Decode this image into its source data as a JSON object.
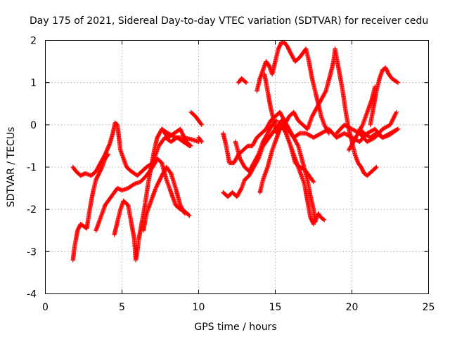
{
  "chart_data": {
    "type": "scatter",
    "title": "Day 175 of 2021, Sidereal Day-to-day VTEC variation (SDTVAR) for receiver cedu",
    "xlabel": "GPS time / hours",
    "ylabel": "SDTVAR / TECUs",
    "xlim": [
      0,
      25
    ],
    "ylim": [
      -4,
      2
    ],
    "x_ticks": [
      0,
      5,
      10,
      15,
      20,
      25
    ],
    "y_ticks": [
      -4,
      -3,
      -2,
      -1,
      0,
      1,
      2
    ],
    "grid": true,
    "marker": "+",
    "color": "#ff0000",
    "tracks": [
      [
        [
          1.8,
          -1.0
        ],
        [
          2.0,
          -1.1
        ],
        [
          2.3,
          -1.2
        ],
        [
          2.6,
          -1.15
        ],
        [
          3.0,
          -1.2
        ],
        [
          3.3,
          -1.1
        ],
        [
          3.6,
          -0.9
        ],
        [
          3.9,
          -0.7
        ],
        [
          4.2,
          -0.45
        ],
        [
          4.4,
          -0.2
        ],
        [
          4.55,
          0.05
        ],
        [
          4.7,
          0.0
        ],
        [
          4.8,
          -0.3
        ],
        [
          4.9,
          -0.6
        ],
        [
          5.1,
          -0.8
        ],
        [
          5.3,
          -1.0
        ],
        [
          5.6,
          -1.1
        ],
        [
          6.0,
          -1.2
        ],
        [
          6.3,
          -1.1
        ],
        [
          6.6,
          -1.0
        ],
        [
          7.0,
          -0.9
        ],
        [
          7.4,
          -0.5
        ],
        [
          7.8,
          -0.3
        ],
        [
          8.2,
          -0.4
        ],
        [
          8.6,
          -0.3
        ],
        [
          9.0,
          -0.4
        ],
        [
          9.4,
          -0.5
        ]
      ],
      [
        [
          1.8,
          -3.2
        ],
        [
          1.9,
          -2.9
        ],
        [
          2.0,
          -2.7
        ],
        [
          2.1,
          -2.5
        ],
        [
          2.3,
          -2.35
        ],
        [
          2.5,
          -2.4
        ],
        [
          2.7,
          -2.45
        ],
        [
          2.9,
          -2.0
        ],
        [
          3.1,
          -1.6
        ],
        [
          3.3,
          -1.3
        ],
        [
          3.5,
          -1.15
        ],
        [
          3.7,
          -1.0
        ],
        [
          3.9,
          -0.8
        ],
        [
          4.1,
          -0.7
        ]
      ],
      [
        [
          3.3,
          -2.5
        ],
        [
          3.6,
          -2.2
        ],
        [
          3.9,
          -1.9
        ],
        [
          4.3,
          -1.7
        ],
        [
          4.7,
          -1.5
        ],
        [
          5.0,
          -1.55
        ],
        [
          5.4,
          -1.5
        ],
        [
          5.8,
          -1.4
        ],
        [
          6.2,
          -1.35
        ],
        [
          6.6,
          -1.2
        ],
        [
          7.0,
          -1.0
        ],
        [
          7.3,
          -0.8
        ],
        [
          7.6,
          -0.9
        ],
        [
          7.9,
          -1.3
        ],
        [
          8.2,
          -1.6
        ],
        [
          8.5,
          -1.9
        ],
        [
          8.8,
          -2.0
        ],
        [
          9.1,
          -2.05
        ],
        [
          9.4,
          -2.15
        ]
      ],
      [
        [
          4.5,
          -2.6
        ],
        [
          4.7,
          -2.3
        ],
        [
          4.9,
          -2.0
        ],
        [
          5.1,
          -1.8
        ],
        [
          5.4,
          -1.9
        ],
        [
          5.6,
          -2.3
        ],
        [
          5.8,
          -2.7
        ],
        [
          5.9,
          -3.2
        ],
        [
          6.0,
          -3.0
        ],
        [
          6.1,
          -2.7
        ],
        [
          6.3,
          -2.3
        ],
        [
          6.5,
          -1.9
        ],
        [
          6.7,
          -1.4
        ],
        [
          6.9,
          -1.0
        ],
        [
          7.1,
          -0.6
        ],
        [
          7.3,
          -0.3
        ],
        [
          7.6,
          -0.1
        ],
        [
          8.0,
          -0.2
        ],
        [
          8.5,
          -0.3
        ],
        [
          9.0,
          -0.3
        ],
        [
          9.6,
          -0.35
        ],
        [
          10.0,
          -0.4
        ]
      ],
      [
        [
          6.4,
          -2.5
        ],
        [
          6.6,
          -2.1
        ],
        [
          6.9,
          -1.8
        ],
        [
          7.2,
          -1.5
        ],
        [
          7.6,
          -1.2
        ],
        [
          7.9,
          -1.0
        ],
        [
          8.2,
          -1.15
        ],
        [
          8.5,
          -1.5
        ],
        [
          8.8,
          -1.9
        ],
        [
          9.1,
          -2.1
        ]
      ],
      [
        [
          7.6,
          -0.1
        ],
        [
          8.0,
          -0.3
        ],
        [
          8.4,
          -0.2
        ],
        [
          8.8,
          -0.1
        ],
        [
          9.2,
          -0.4
        ],
        [
          9.5,
          -0.5
        ]
      ],
      [
        [
          9.5,
          0.3
        ],
        [
          9.8,
          0.2
        ],
        [
          10.0,
          0.1
        ],
        [
          10.2,
          0.0
        ]
      ],
      [
        [
          10.0,
          -0.3
        ],
        [
          10.2,
          -0.4
        ]
      ],
      [
        [
          11.6,
          -1.6
        ],
        [
          11.9,
          -1.7
        ],
        [
          12.2,
          -1.6
        ],
        [
          12.5,
          -1.7
        ],
        [
          12.8,
          -1.5
        ],
        [
          13.0,
          -1.3
        ],
        [
          13.3,
          -1.2
        ],
        [
          13.6,
          -1.0
        ],
        [
          13.9,
          -0.8
        ],
        [
          14.2,
          -0.5
        ],
        [
          14.6,
          -0.3
        ],
        [
          15.0,
          -0.1
        ],
        [
          15.4,
          0.1
        ],
        [
          15.8,
          -0.1
        ],
        [
          16.2,
          -0.3
        ],
        [
          16.6,
          -0.2
        ],
        [
          17.0,
          -0.2
        ],
        [
          17.5,
          -0.3
        ],
        [
          18.0,
          -0.2
        ],
        [
          18.5,
          -0.1
        ],
        [
          19.0,
          -0.3
        ],
        [
          19.5,
          -0.2
        ],
        [
          20.0,
          -0.3
        ],
        [
          20.5,
          -0.4
        ],
        [
          21.0,
          -0.2
        ],
        [
          21.5,
          -0.1
        ],
        [
          22.0,
          -0.3
        ],
        [
          22.5,
          -0.2
        ],
        [
          23.0,
          -0.1
        ]
      ],
      [
        [
          11.6,
          -0.2
        ],
        [
          11.8,
          -0.5
        ],
        [
          12.0,
          -0.9
        ],
        [
          12.3,
          -0.9
        ],
        [
          12.6,
          -0.7
        ],
        [
          12.9,
          -0.6
        ],
        [
          13.2,
          -0.5
        ],
        [
          13.5,
          -0.5
        ],
        [
          13.8,
          -0.3
        ],
        [
          14.1,
          -0.2
        ],
        [
          14.4,
          -0.1
        ],
        [
          14.7,
          0.1
        ],
        [
          15.0,
          0.2
        ],
        [
          15.3,
          0.3
        ],
        [
          15.6,
          0.1
        ],
        [
          15.9,
          -0.1
        ],
        [
          16.2,
          -0.3
        ],
        [
          16.5,
          -0.5
        ],
        [
          16.8,
          -0.9
        ],
        [
          17.1,
          -1.3
        ],
        [
          17.3,
          -1.7
        ],
        [
          17.5,
          -2.0
        ],
        [
          17.6,
          -2.3
        ],
        [
          17.8,
          -2.1
        ],
        [
          18.0,
          -2.2
        ],
        [
          18.2,
          -2.25
        ]
      ],
      [
        [
          14.0,
          -1.6
        ],
        [
          14.2,
          -1.3
        ],
        [
          14.5,
          -1.0
        ],
        [
          14.8,
          -0.6
        ],
        [
          15.1,
          -0.3
        ],
        [
          15.4,
          0.0
        ],
        [
          15.7,
          -0.2
        ],
        [
          16.0,
          -0.5
        ],
        [
          16.3,
          -0.8
        ],
        [
          16.6,
          -1.1
        ],
        [
          16.9,
          -1.4
        ],
        [
          17.1,
          -1.8
        ],
        [
          17.3,
          -2.2
        ],
        [
          17.5,
          -2.35
        ]
      ],
      [
        [
          13.8,
          0.8
        ],
        [
          14.0,
          1.1
        ],
        [
          14.2,
          1.3
        ],
        [
          14.4,
          1.5
        ],
        [
          14.6,
          1.4
        ],
        [
          14.8,
          1.2
        ],
        [
          15.0,
          1.5
        ],
        [
          15.2,
          1.8
        ],
        [
          15.4,
          1.95
        ],
        [
          15.6,
          1.95
        ],
        [
          15.8,
          1.85
        ],
        [
          16.0,
          1.7
        ],
        [
          16.3,
          1.5
        ],
        [
          16.6,
          1.6
        ],
        [
          17.0,
          1.8
        ],
        [
          17.2,
          1.5
        ],
        [
          17.4,
          1.1
        ],
        [
          17.6,
          0.8
        ],
        [
          17.8,
          0.5
        ],
        [
          18.0,
          0.2
        ],
        [
          18.2,
          0.0
        ],
        [
          18.5,
          -0.2
        ]
      ],
      [
        [
          14.3,
          1.2
        ],
        [
          14.5,
          0.8
        ],
        [
          14.7,
          0.4
        ],
        [
          14.9,
          0.1
        ],
        [
          15.1,
          -0.2
        ],
        [
          15.3,
          -0.1
        ],
        [
          15.6,
          0.0
        ],
        [
          15.9,
          0.2
        ],
        [
          16.2,
          0.3
        ],
        [
          16.5,
          0.1
        ],
        [
          16.8,
          0.0
        ],
        [
          17.1,
          -0.1
        ],
        [
          17.4,
          0.2
        ],
        [
          17.7,
          0.4
        ],
        [
          18.0,
          0.6
        ],
        [
          18.3,
          0.8
        ],
        [
          18.6,
          1.2
        ],
        [
          18.8,
          1.5
        ],
        [
          18.9,
          1.8
        ],
        [
          19.0,
          1.6
        ],
        [
          19.2,
          1.2
        ],
        [
          19.4,
          0.8
        ],
        [
          19.6,
          0.3
        ],
        [
          19.8,
          -0.1
        ],
        [
          20.0,
          -0.4
        ],
        [
          20.2,
          -0.7
        ],
        [
          20.4,
          -0.9
        ],
        [
          20.6,
          -1.0
        ],
        [
          20.8,
          -1.15
        ],
        [
          21.0,
          -1.2
        ],
        [
          21.3,
          -1.1
        ],
        [
          21.6,
          -1.0
        ]
      ],
      [
        [
          12.4,
          -0.4
        ],
        [
          12.7,
          -0.8
        ],
        [
          13.0,
          -1.0
        ],
        [
          13.3,
          -1.1
        ],
        [
          13.6,
          -0.9
        ],
        [
          13.9,
          -0.7
        ],
        [
          14.2,
          -0.4
        ],
        [
          14.5,
          -0.2
        ],
        [
          14.8,
          0.0
        ],
        [
          15.1,
          0.1
        ]
      ],
      [
        [
          12.6,
          1.0
        ],
        [
          12.8,
          1.1
        ],
        [
          13.1,
          1.0
        ]
      ],
      [
        [
          16.0,
          -0.5
        ],
        [
          16.3,
          -0.9
        ],
        [
          16.6,
          -1.0
        ],
        [
          16.9,
          -1.05
        ],
        [
          17.2,
          -1.2
        ],
        [
          17.5,
          -1.35
        ]
      ],
      [
        [
          19.0,
          -0.2
        ],
        [
          19.5,
          0.0
        ],
        [
          20.0,
          -0.1
        ],
        [
          20.5,
          -0.2
        ],
        [
          21.0,
          -0.4
        ],
        [
          21.5,
          -0.3
        ],
        [
          22.0,
          -0.1
        ],
        [
          22.5,
          0.0
        ],
        [
          22.9,
          0.3
        ]
      ],
      [
        [
          19.8,
          -0.6
        ],
        [
          20.1,
          -0.4
        ],
        [
          20.4,
          -0.2
        ],
        [
          20.7,
          0.0
        ],
        [
          21.0,
          0.3
        ],
        [
          21.3,
          0.6
        ],
        [
          21.5,
          0.9
        ]
      ],
      [
        [
          21.2,
          0.0
        ],
        [
          21.4,
          0.4
        ],
        [
          21.6,
          0.8
        ],
        [
          21.8,
          1.1
        ],
        [
          22.0,
          1.3
        ],
        [
          22.2,
          1.35
        ],
        [
          22.4,
          1.2
        ],
        [
          22.6,
          1.1
        ],
        [
          22.8,
          1.05
        ],
        [
          23.0,
          1.0
        ]
      ],
      [
        [
          20.5,
          -0.1
        ],
        [
          20.8,
          -0.2
        ],
        [
          21.2,
          -0.3
        ],
        [
          21.6,
          -0.2
        ],
        [
          22.0,
          -0.3
        ],
        [
          22.4,
          -0.25
        ],
        [
          22.8,
          -0.15
        ],
        [
          23.0,
          -0.1
        ]
      ]
    ]
  }
}
